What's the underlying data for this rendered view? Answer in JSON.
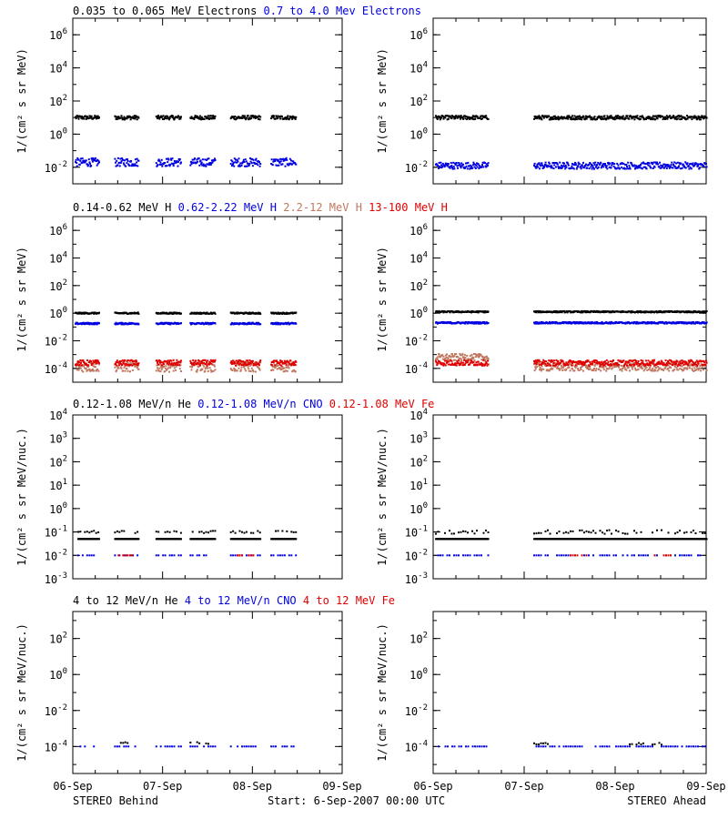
{
  "colors": {
    "black": "#000000",
    "blue": "#0000e0",
    "tan": "#c07860",
    "red": "#e00000"
  },
  "footer": {
    "left": "STEREO Behind",
    "center": "Start:  6-Sep-2007 00:00 UTC",
    "right": "STEREO Ahead"
  },
  "x_ticks": [
    "06-Sep",
    "07-Sep",
    "08-Sep",
    "09-Sep"
  ],
  "chart_data": [
    {
      "type": "scatter",
      "row": 0,
      "titles": [
        {
          "text": "0.035 to 0.065 MeV Electrons",
          "color": "black"
        },
        {
          "text": "0.7 to 4.0 Mev Electrons",
          "color": "blue"
        }
      ],
      "ylabel": "1/(cm² s sr MeV)",
      "yscale": "log",
      "ylim_exp": [
        -3,
        7
      ],
      "yticks": [
        {
          "base": "10",
          "exp": "-2",
          "v": -2
        },
        {
          "base": "10",
          "exp": "0",
          "v": 0
        },
        {
          "base": "10",
          "exp": "2",
          "v": 2
        },
        {
          "base": "10",
          "exp": "4",
          "v": 4
        },
        {
          "base": "10",
          "exp": "6",
          "v": 6
        }
      ],
      "xlim_days": [
        0,
        3
      ],
      "panels": [
        {
          "name": "STEREO Behind",
          "series": [
            {
              "color": "black",
              "log_value": 1.0,
              "scatter": 0.12,
              "segments": [
                [
                  0.02,
                  0.29
                ],
                [
                  0.46,
                  0.73
                ],
                [
                  0.92,
                  1.2
                ],
                [
                  1.3,
                  1.58
                ],
                [
                  1.75,
                  2.08
                ],
                [
                  2.2,
                  2.48
                ]
              ]
            },
            {
              "color": "blue",
              "log_value": -1.7,
              "scatter": 0.25,
              "segments": [
                [
                  0.02,
                  0.29
                ],
                [
                  0.46,
                  0.73
                ],
                [
                  0.92,
                  1.2
                ],
                [
                  1.3,
                  1.58
                ],
                [
                  1.75,
                  2.08
                ],
                [
                  2.2,
                  2.48
                ]
              ]
            }
          ]
        },
        {
          "name": "STEREO Ahead",
          "series": [
            {
              "color": "black",
              "log_value": 1.0,
              "scatter": 0.12,
              "segments": [
                [
                  0.02,
                  0.6
                ],
                [
                  1.1,
                  3.0
                ]
              ]
            },
            {
              "color": "blue",
              "log_value": -1.9,
              "scatter": 0.2,
              "segments": [
                [
                  0.02,
                  0.6
                ],
                [
                  1.1,
                  3.0
                ]
              ]
            }
          ]
        }
      ]
    },
    {
      "type": "scatter",
      "row": 1,
      "titles": [
        {
          "text": "0.14-0.62 MeV H",
          "color": "black"
        },
        {
          "text": "0.62-2.22 MeV H",
          "color": "blue"
        },
        {
          "text": "2.2-12 MeV H",
          "color": "tan"
        },
        {
          "text": "13-100 MeV H",
          "color": "red"
        }
      ],
      "ylabel": "1/(cm² s sr MeV)",
      "yscale": "log",
      "ylim_exp": [
        -5,
        7
      ],
      "yticks": [
        {
          "base": "10",
          "exp": "-4",
          "v": -4
        },
        {
          "base": "10",
          "exp": "-2",
          "v": -2
        },
        {
          "base": "10",
          "exp": "0",
          "v": 0
        },
        {
          "base": "10",
          "exp": "2",
          "v": 2
        },
        {
          "base": "10",
          "exp": "4",
          "v": 4
        },
        {
          "base": "10",
          "exp": "6",
          "v": 6
        }
      ],
      "xlim_days": [
        0,
        3
      ],
      "panels": [
        {
          "name": "STEREO Behind",
          "series": [
            {
              "color": "black",
              "log_value": 0.0,
              "scatter": 0.05,
              "segments": [
                [
                  0.02,
                  0.29
                ],
                [
                  0.46,
                  0.73
                ],
                [
                  0.92,
                  1.2
                ],
                [
                  1.3,
                  1.58
                ],
                [
                  1.75,
                  2.08
                ],
                [
                  2.2,
                  2.48
                ]
              ]
            },
            {
              "color": "blue",
              "log_value": -0.75,
              "scatter": 0.06,
              "segments": [
                [
                  0.02,
                  0.29
                ],
                [
                  0.46,
                  0.73
                ],
                [
                  0.92,
                  1.2
                ],
                [
                  1.3,
                  1.58
                ],
                [
                  1.75,
                  2.08
                ],
                [
                  2.2,
                  2.48
                ]
              ]
            },
            {
              "color": "tan",
              "log_value": -3.9,
              "scatter": 0.35,
              "segments": [
                [
                  0.02,
                  0.29
                ],
                [
                  0.46,
                  0.73
                ],
                [
                  0.92,
                  1.2
                ],
                [
                  1.3,
                  1.58
                ],
                [
                  1.75,
                  2.08
                ],
                [
                  2.2,
                  2.48
                ]
              ]
            },
            {
              "color": "red",
              "log_value": -3.6,
              "scatter": 0.2,
              "segments": [
                [
                  0.02,
                  0.29
                ],
                [
                  0.46,
                  0.73
                ],
                [
                  0.92,
                  1.2
                ],
                [
                  1.3,
                  1.58
                ],
                [
                  1.75,
                  2.08
                ],
                [
                  2.2,
                  2.48
                ]
              ]
            }
          ]
        },
        {
          "name": "STEREO Ahead",
          "series": [
            {
              "color": "black",
              "log_value": 0.1,
              "scatter": 0.05,
              "segments": [
                [
                  0.02,
                  0.6
                ],
                [
                  1.1,
                  3.0
                ]
              ]
            },
            {
              "color": "blue",
              "log_value": -0.7,
              "scatter": 0.06,
              "segments": [
                [
                  0.02,
                  0.6
                ],
                [
                  1.1,
                  3.0
                ]
              ]
            },
            {
              "color": "tan",
              "log_value": -3.2,
              "scatter": 0.25,
              "segments": [
                [
                  0.02,
                  0.6
                ]
              ]
            },
            {
              "color": "tan",
              "log_value": -3.9,
              "scatter": 0.3,
              "segments": [
                [
                  1.1,
                  3.0
                ]
              ]
            },
            {
              "color": "red",
              "log_value": -3.6,
              "scatter": 0.2,
              "segments": [
                [
                  0.02,
                  0.6
                ],
                [
                  1.1,
                  3.0
                ]
              ]
            }
          ]
        }
      ]
    },
    {
      "type": "scatter",
      "row": 2,
      "titles": [
        {
          "text": "0.12-1.08 MeV/n He",
          "color": "black"
        },
        {
          "text": "0.12-1.08 MeV/n CNO",
          "color": "blue"
        },
        {
          "text": "0.12-1.08 MeV Fe",
          "color": "red"
        }
      ],
      "ylabel": "1/(cm² s sr MeV/nuc.)",
      "yscale": "log",
      "ylim_exp": [
        -3,
        4
      ],
      "yticks": [
        {
          "base": "10",
          "exp": "-3",
          "v": -3
        },
        {
          "base": "10",
          "exp": "-2",
          "v": -2
        },
        {
          "base": "10",
          "exp": "-1",
          "v": -1
        },
        {
          "base": "10",
          "exp": "0",
          "v": 0
        },
        {
          "base": "10",
          "exp": "1",
          "v": 1
        },
        {
          "base": "10",
          "exp": "2",
          "v": 2
        },
        {
          "base": "10",
          "exp": "3",
          "v": 3
        },
        {
          "base": "10",
          "exp": "4",
          "v": 4
        }
      ],
      "xlim_days": [
        0,
        3
      ],
      "panels": [
        {
          "name": "STEREO Behind",
          "series": [
            {
              "color": "black",
              "log_value": -1.3,
              "scatter": 0.0,
              "segments": [
                [
                  0.05,
                  0.29
                ],
                [
                  0.46,
                  0.73
                ],
                [
                  0.92,
                  1.2
                ],
                [
                  1.3,
                  1.58
                ],
                [
                  1.75,
                  2.08
                ],
                [
                  2.2,
                  2.48
                ]
              ]
            },
            {
              "color": "black",
              "log_value": -1.0,
              "scatter": 0.05,
              "sparse": true,
              "segments": [
                [
                  0.05,
                  0.29
                ],
                [
                  0.46,
                  0.73
                ],
                [
                  0.92,
                  1.2
                ],
                [
                  1.3,
                  1.58
                ],
                [
                  1.75,
                  2.08
                ],
                [
                  2.2,
                  2.48
                ]
              ]
            },
            {
              "color": "blue",
              "log_value": -2.0,
              "scatter": 0.0,
              "sparse": true,
              "segments": [
                [
                  0.05,
                  0.29
                ],
                [
                  0.46,
                  0.73
                ],
                [
                  0.92,
                  1.2
                ],
                [
                  1.3,
                  1.58
                ],
                [
                  1.75,
                  2.08
                ],
                [
                  2.2,
                  2.48
                ]
              ]
            },
            {
              "color": "red",
              "log_value": -2.0,
              "scatter": 0.0,
              "sparse": true,
              "segments": [
                [
                  0.5,
                  0.7
                ],
                [
                  1.8,
                  2.0
                ]
              ]
            }
          ]
        },
        {
          "name": "STEREO Ahead",
          "series": [
            {
              "color": "black",
              "log_value": -1.3,
              "scatter": 0.0,
              "segments": [
                [
                  0.02,
                  0.6
                ],
                [
                  1.1,
                  3.0
                ]
              ]
            },
            {
              "color": "black",
              "log_value": -1.0,
              "scatter": 0.08,
              "sparse": true,
              "segments": [
                [
                  0.02,
                  0.6
                ],
                [
                  1.1,
                  3.0
                ]
              ]
            },
            {
              "color": "blue",
              "log_value": -2.0,
              "scatter": 0.0,
              "sparse": true,
              "segments": [
                [
                  0.02,
                  0.6
                ],
                [
                  1.1,
                  3.0
                ]
              ]
            },
            {
              "color": "red",
              "log_value": -2.0,
              "scatter": 0.0,
              "sparse": true,
              "segments": [
                [
                  1.5,
                  1.7
                ],
                [
                  2.4,
                  2.6
                ]
              ]
            }
          ]
        }
      ]
    },
    {
      "type": "scatter",
      "row": 3,
      "titles": [
        {
          "text": "4 to 12 MeV/n He",
          "color": "black"
        },
        {
          "text": "4 to 12 MeV/n CNO",
          "color": "blue"
        },
        {
          "text": "4 to 12 MeV Fe",
          "color": "red"
        }
      ],
      "ylabel": "1/(cm² s sr MeV/nuc.)",
      "yscale": "log",
      "ylim_exp": [
        -5.5,
        3.5
      ],
      "yticks": [
        {
          "base": "10",
          "exp": "-4",
          "v": -4
        },
        {
          "base": "10",
          "exp": "-2",
          "v": -2
        },
        {
          "base": "10",
          "exp": "0",
          "v": 0
        },
        {
          "base": "10",
          "exp": "2",
          "v": 2
        }
      ],
      "xlim_days": [
        0,
        3
      ],
      "panels": [
        {
          "name": "STEREO Behind",
          "series": [
            {
              "color": "blue",
              "log_value": -4.0,
              "scatter": 0.0,
              "sparse": true,
              "segments": [
                [
                  0.05,
                  0.29
                ],
                [
                  0.46,
                  0.73
                ],
                [
                  0.92,
                  1.2
                ],
                [
                  1.3,
                  1.58
                ],
                [
                  1.75,
                  2.08
                ],
                [
                  2.2,
                  2.48
                ]
              ]
            },
            {
              "color": "black",
              "log_value": -3.8,
              "scatter": 0.05,
              "sparse": true,
              "segments": [
                [
                  0.5,
                  0.7
                ],
                [
                  1.3,
                  1.5
                ]
              ]
            }
          ]
        },
        {
          "name": "STEREO Ahead",
          "series": [
            {
              "color": "blue",
              "log_value": -4.0,
              "scatter": 0.0,
              "sparse": true,
              "segments": [
                [
                  0.05,
                  0.6
                ],
                [
                  1.1,
                  3.0
                ]
              ]
            },
            {
              "color": "black",
              "log_value": -3.85,
              "scatter": 0.05,
              "sparse": true,
              "segments": [
                [
                  1.1,
                  1.3
                ],
                [
                  2.1,
                  2.5
                ]
              ]
            }
          ]
        }
      ]
    }
  ]
}
